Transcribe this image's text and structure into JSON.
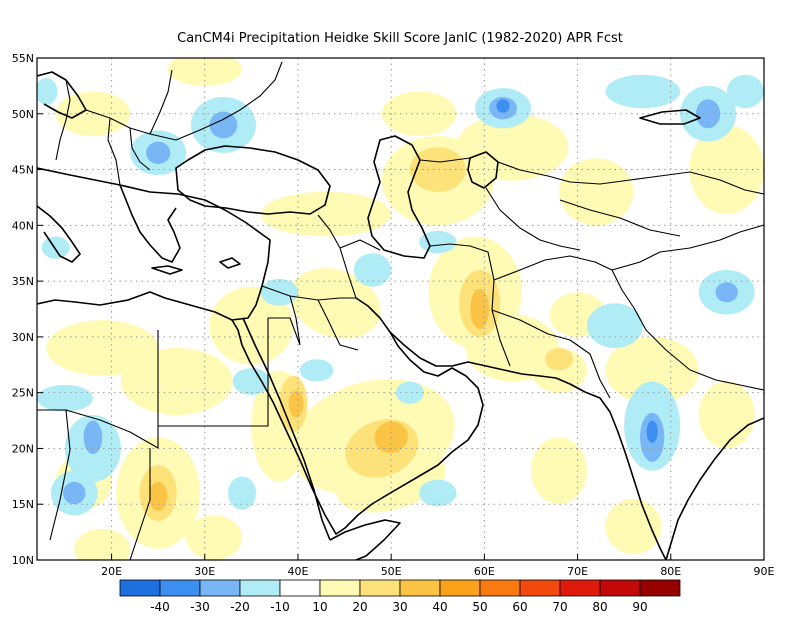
{
  "title": "CanCM4i  Precipitation Heidke Skill Score JanIC (1982-2020) APR Fcst",
  "map": {
    "lon_range": [
      12,
      90
    ],
    "lat_range": [
      10,
      55
    ],
    "lon_ticks": [
      {
        "value": 20,
        "label": "20E"
      },
      {
        "value": 30,
        "label": "30E"
      },
      {
        "value": 40,
        "label": "40E"
      },
      {
        "value": 50,
        "label": "50E"
      },
      {
        "value": 60,
        "label": "60E"
      },
      {
        "value": 70,
        "label": "70E"
      },
      {
        "value": 80,
        "label": "80E"
      },
      {
        "value": 90,
        "label": "90E"
      }
    ],
    "lat_ticks": [
      {
        "value": 10,
        "label": "10N"
      },
      {
        "value": 15,
        "label": "15N"
      },
      {
        "value": 20,
        "label": "20N"
      },
      {
        "value": 25,
        "label": "25N"
      },
      {
        "value": 30,
        "label": "30N"
      },
      {
        "value": 35,
        "label": "35N"
      },
      {
        "value": 40,
        "label": "40N"
      },
      {
        "value": 45,
        "label": "45N"
      },
      {
        "value": 50,
        "label": "50N"
      },
      {
        "value": 55,
        "label": "55N"
      }
    ],
    "gridlines": "dotted"
  },
  "colorbar": {
    "bins": [
      {
        "color": "#1e6fe0"
      },
      {
        "color": "#3c8ef0"
      },
      {
        "color": "#78b6f5"
      },
      {
        "color": "#b0ecf5"
      },
      {
        "color": "#ffffff"
      },
      {
        "color": "#fffab4"
      },
      {
        "color": "#fde27a"
      },
      {
        "color": "#fbc445"
      },
      {
        "color": "#f9a21a"
      },
      {
        "color": "#f87a10"
      },
      {
        "color": "#f24a0c"
      },
      {
        "color": "#e01a0a"
      },
      {
        "color": "#c20808"
      },
      {
        "color": "#960000"
      }
    ],
    "labels": [
      "-40",
      "-30",
      "-20",
      "-10",
      "10",
      "20",
      "30",
      "40",
      "50",
      "60",
      "70",
      "80",
      "90"
    ]
  },
  "skill_patches": [
    {
      "lon": 35,
      "lat": 31,
      "rx": 4.5,
      "ry": 3.5,
      "level": 5,
      "rot": 0
    },
    {
      "lon": 44,
      "lat": 33,
      "rx": 5,
      "ry": 3,
      "level": 5,
      "rot": 20
    },
    {
      "lon": 27,
      "lat": 26,
      "rx": 6,
      "ry": 3,
      "level": 5,
      "rot": 0
    },
    {
      "lon": 19,
      "lat": 29,
      "rx": 6,
      "ry": 2.5,
      "level": 5,
      "rot": 0
    },
    {
      "lon": 38,
      "lat": 22,
      "rx": 3,
      "ry": 5,
      "level": 5,
      "rot": 0
    },
    {
      "lon": 48,
      "lat": 21,
      "rx": 9,
      "ry": 5,
      "level": 5,
      "rot": -15
    },
    {
      "lon": 50,
      "lat": 17,
      "rx": 6,
      "ry": 2.5,
      "level": 5,
      "rot": -15
    },
    {
      "lon": 25,
      "lat": 16,
      "rx": 4.5,
      "ry": 5,
      "level": 5,
      "rot": 0
    },
    {
      "lon": 17,
      "lat": 17,
      "rx": 3,
      "ry": 2.5,
      "level": 5,
      "rot": 0
    },
    {
      "lon": 19,
      "lat": 11,
      "rx": 3,
      "ry": 1.8,
      "level": 5,
      "rot": 0
    },
    {
      "lon": 31,
      "lat": 12,
      "rx": 3,
      "ry": 2,
      "level": 5,
      "rot": 0
    },
    {
      "lon": 59,
      "lat": 34,
      "rx": 5,
      "ry": 5,
      "level": 5,
      "rot": 0
    },
    {
      "lon": 63,
      "lat": 29,
      "rx": 5,
      "ry": 3,
      "level": 5,
      "rot": 0
    },
    {
      "lon": 68,
      "lat": 27,
      "rx": 3,
      "ry": 2,
      "level": 5,
      "rot": 0
    },
    {
      "lon": 78,
      "lat": 27,
      "rx": 5,
      "ry": 3,
      "level": 5,
      "rot": 0
    },
    {
      "lon": 86,
      "lat": 23,
      "rx": 3,
      "ry": 3,
      "level": 5,
      "rot": 0
    },
    {
      "lon": 68,
      "lat": 18,
      "rx": 3,
      "ry": 3,
      "level": 5,
      "rot": 0
    },
    {
      "lon": 76,
      "lat": 13,
      "rx": 3,
      "ry": 2.5,
      "level": 5,
      "rot": 0
    },
    {
      "lon": 55,
      "lat": 44,
      "rx": 6,
      "ry": 4,
      "level": 5,
      "rot": 0
    },
    {
      "lon": 63,
      "lat": 47,
      "rx": 6,
      "ry": 3,
      "level": 5,
      "rot": 0
    },
    {
      "lon": 53,
      "lat": 50,
      "rx": 4,
      "ry": 2,
      "level": 5,
      "rot": 0
    },
    {
      "lon": 30,
      "lat": 54,
      "rx": 4,
      "ry": 1.5,
      "level": 5,
      "rot": 0
    },
    {
      "lon": 43,
      "lat": 41,
      "rx": 7,
      "ry": 2,
      "level": 5,
      "rot": 0
    },
    {
      "lon": 72,
      "lat": 43,
      "rx": 4,
      "ry": 3,
      "level": 5,
      "rot": 0
    },
    {
      "lon": 86,
      "lat": 45,
      "rx": 4,
      "ry": 4,
      "level": 5,
      "rot": 0
    },
    {
      "lon": 18,
      "lat": 50,
      "rx": 4,
      "ry": 2,
      "level": 5,
      "rot": 0
    },
    {
      "lon": 70,
      "lat": 32,
      "rx": 3,
      "ry": 2,
      "level": 5,
      "rot": 0
    },
    {
      "lon": 59.5,
      "lat": 33,
      "rx": 2.2,
      "ry": 3,
      "level": 6,
      "rot": 0
    },
    {
      "lon": 39.5,
      "lat": 24,
      "rx": 1.5,
      "ry": 2.5,
      "level": 6,
      "rot": 0
    },
    {
      "lon": 49,
      "lat": 20,
      "rx": 4,
      "ry": 2.5,
      "level": 6,
      "rot": -20
    },
    {
      "lon": 25,
      "lat": 16,
      "rx": 2,
      "ry": 2.5,
      "level": 6,
      "rot": 0
    },
    {
      "lon": 55,
      "lat": 45,
      "rx": 3,
      "ry": 2,
      "level": 6,
      "rot": 0
    },
    {
      "lon": 68,
      "lat": 28,
      "rx": 1.5,
      "ry": 1,
      "level": 6,
      "rot": 0
    },
    {
      "lon": 59.5,
      "lat": 32.5,
      "rx": 1,
      "ry": 1.8,
      "level": 7,
      "rot": 0
    },
    {
      "lon": 50,
      "lat": 21,
      "rx": 1.8,
      "ry": 1.4,
      "level": 7,
      "rot": -20
    },
    {
      "lon": 25,
      "lat": 15.7,
      "rx": 1,
      "ry": 1.3,
      "level": 7,
      "rot": 0
    },
    {
      "lon": 39.8,
      "lat": 24,
      "rx": 0.8,
      "ry": 1.2,
      "level": 7,
      "rot": 0
    },
    {
      "lon": 32,
      "lat": 49,
      "rx": 3.5,
      "ry": 2.5,
      "level": 3,
      "rot": 0
    },
    {
      "lon": 25,
      "lat": 46.5,
      "rx": 3,
      "ry": 2,
      "level": 3,
      "rot": 0
    },
    {
      "lon": 62,
      "lat": 50.5,
      "rx": 3,
      "ry": 1.8,
      "level": 3,
      "rot": 0
    },
    {
      "lon": 84,
      "lat": 50,
      "rx": 3,
      "ry": 2.5,
      "level": 3,
      "rot": 0
    },
    {
      "lon": 77,
      "lat": 52,
      "rx": 4,
      "ry": 1.5,
      "level": 3,
      "rot": 0
    },
    {
      "lon": 88,
      "lat": 52,
      "rx": 2,
      "ry": 1.5,
      "level": 3,
      "rot": 0
    },
    {
      "lon": 74,
      "lat": 31,
      "rx": 3,
      "ry": 2,
      "level": 3,
      "rot": 0
    },
    {
      "lon": 86,
      "lat": 34,
      "rx": 3,
      "ry": 2,
      "level": 3,
      "rot": 0
    },
    {
      "lon": 78,
      "lat": 22,
      "rx": 3,
      "ry": 4,
      "level": 3,
      "rot": 0
    },
    {
      "lon": 18,
      "lat": 20,
      "rx": 3,
      "ry": 3,
      "level": 3,
      "rot": 0
    },
    {
      "lon": 16,
      "lat": 16,
      "rx": 2.5,
      "ry": 2,
      "level": 3,
      "rot": 0
    },
    {
      "lon": 15,
      "lat": 24.5,
      "rx": 3,
      "ry": 1.2,
      "level": 3,
      "rot": 0
    },
    {
      "lon": 34,
      "lat": 16,
      "rx": 1.5,
      "ry": 1.5,
      "level": 3,
      "rot": 0
    },
    {
      "lon": 35,
      "lat": 26,
      "rx": 2,
      "ry": 1.2,
      "level": 3,
      "rot": 0
    },
    {
      "lon": 42,
      "lat": 27,
      "rx": 1.8,
      "ry": 1,
      "level": 3,
      "rot": 0
    },
    {
      "lon": 55,
      "lat": 16,
      "rx": 2,
      "ry": 1.2,
      "level": 3,
      "rot": 0
    },
    {
      "lon": 48,
      "lat": 36,
      "rx": 2,
      "ry": 1.5,
      "level": 3,
      "rot": 0
    },
    {
      "lon": 38,
      "lat": 34,
      "rx": 2,
      "ry": 1.2,
      "level": 3,
      "rot": 0
    },
    {
      "lon": 55,
      "lat": 38.5,
      "rx": 2,
      "ry": 1,
      "level": 3,
      "rot": 0
    },
    {
      "lon": 14,
      "lat": 38,
      "rx": 1.5,
      "ry": 1,
      "level": 3,
      "rot": 0
    },
    {
      "lon": 13,
      "lat": 52,
      "rx": 1.2,
      "ry": 1.2,
      "level": 3,
      "rot": 0
    },
    {
      "lon": 52,
      "lat": 25,
      "rx": 1.5,
      "ry": 1,
      "level": 3,
      "rot": 0
    },
    {
      "lon": 32,
      "lat": 49,
      "rx": 1.5,
      "ry": 1.2,
      "level": 2,
      "rot": 0
    },
    {
      "lon": 25,
      "lat": 46.5,
      "rx": 1.3,
      "ry": 1,
      "level": 2,
      "rot": 0
    },
    {
      "lon": 62,
      "lat": 50.5,
      "rx": 1.5,
      "ry": 1,
      "level": 2,
      "rot": 0
    },
    {
      "lon": 84,
      "lat": 50,
      "rx": 1.3,
      "ry": 1.3,
      "level": 2,
      "rot": 0
    },
    {
      "lon": 86,
      "lat": 34,
      "rx": 1.2,
      "ry": 0.9,
      "level": 2,
      "rot": 0
    },
    {
      "lon": 78,
      "lat": 21,
      "rx": 1.3,
      "ry": 2.2,
      "level": 2,
      "rot": 0
    },
    {
      "lon": 16,
      "lat": 16,
      "rx": 1.2,
      "ry": 1,
      "level": 2,
      "rot": 0
    },
    {
      "lon": 18,
      "lat": 21,
      "rx": 1,
      "ry": 1.5,
      "level": 2,
      "rot": 0
    },
    {
      "lon": 62,
      "lat": 50.7,
      "rx": 0.7,
      "ry": 0.6,
      "level": 1,
      "rot": 0
    },
    {
      "lon": 78,
      "lat": 21.5,
      "rx": 0.6,
      "ry": 1,
      "level": 1,
      "rot": 0
    }
  ]
}
